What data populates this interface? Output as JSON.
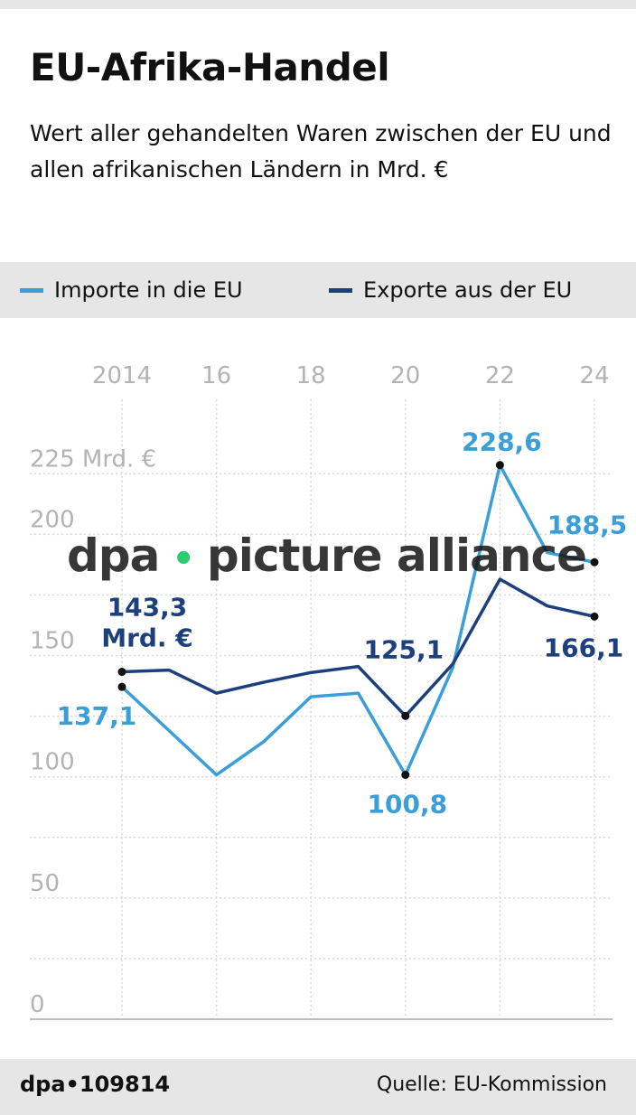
{
  "header": {
    "title": "EU-Afrika-Handel",
    "subtitle": "Wert aller gehandelten Waren zwischen der EU und allen afrikanischen Ländern in Mrd. €"
  },
  "legend": {
    "imports_label": "Importe in die EU",
    "exports_label": "Exporte aus der EU"
  },
  "colors": {
    "imports": "#3a9fd8",
    "exports": "#1c3f7e",
    "axis_text": "#b3b3b3",
    "grid": "#d9d9d9",
    "band": "#e6e6e6"
  },
  "chart_data": {
    "type": "line",
    "title": "EU-Afrika-Handel",
    "x": [
      2014,
      2015,
      2016,
      2017,
      2018,
      2019,
      2020,
      2021,
      2022,
      2023,
      2024
    ],
    "xticks": [
      2014,
      2016,
      2018,
      2020,
      2022,
      2024
    ],
    "xtick_labels": [
      "2014",
      "16",
      "18",
      "20",
      "22",
      "24"
    ],
    "yticks": [
      0,
      50,
      100,
      150,
      200,
      225
    ],
    "ytick_labels": [
      "0",
      "50",
      "100",
      "150",
      "200",
      "225 Mrd. €"
    ],
    "ylim": [
      0,
      225
    ],
    "series": [
      {
        "name": "Importe in die EU",
        "values": [
          137.1,
          119.0,
          100.8,
          114.5,
          133.0,
          134.5,
          100.8,
          145.0,
          228.6,
          192.5,
          188.5
        ]
      },
      {
        "name": "Exporte aus der EU",
        "values": [
          143.3,
          144.0,
          134.5,
          139.0,
          143.0,
          145.5,
          125.1,
          146.5,
          181.5,
          170.5,
          166.1
        ]
      }
    ],
    "annotations": [
      {
        "series": 1,
        "x": 2014,
        "label": "143,3",
        "label2": "Mrd. €"
      },
      {
        "series": 0,
        "x": 2014,
        "label": "137,1"
      },
      {
        "series": 1,
        "x": 2020,
        "label": "125,1"
      },
      {
        "series": 0,
        "x": 2020,
        "label": "100,8"
      },
      {
        "series": 0,
        "x": 2022,
        "label": "228,6"
      },
      {
        "series": 0,
        "x": 2024,
        "label": "188,5"
      },
      {
        "series": 1,
        "x": 2024,
        "label": "166,1"
      }
    ]
  },
  "watermark": {
    "left": "dpa",
    "dot": "•",
    "right": "picture alliance"
  },
  "footer": {
    "id": "dpa•109814",
    "source": "Quelle: EU-Kommission"
  }
}
